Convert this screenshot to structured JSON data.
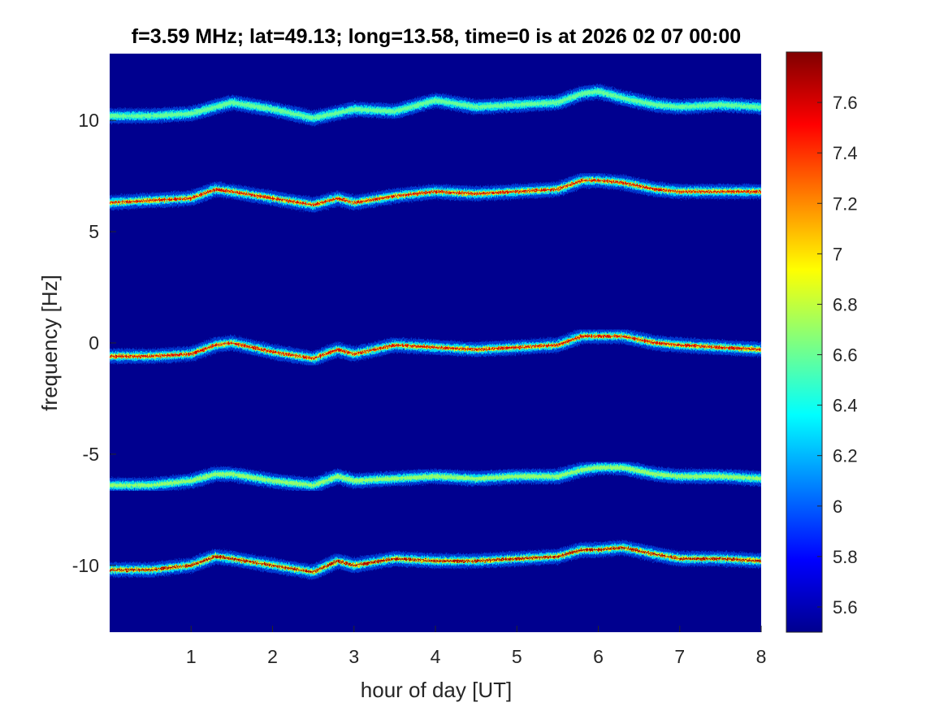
{
  "chart_data": {
    "type": "heatmap",
    "title": "f=3.59 MHz;  lat=49.13; long=13.58, time=0 is at 2026 02 07 00:00",
    "xlabel": "hour of day [UT]",
    "ylabel": "frequency [Hz]",
    "xlim": [
      0,
      8
    ],
    "ylim": [
      -13,
      13
    ],
    "x_ticks": [
      "1",
      "2",
      "3",
      "4",
      "5",
      "6",
      "7",
      "8"
    ],
    "y_ticks": [
      "10",
      "5",
      "0",
      "-5",
      "-10"
    ],
    "colormap": "jet",
    "background_color": "#00008f",
    "colorbar": {
      "range": [
        5.5,
        7.8
      ],
      "ticks": [
        "7.6",
        "7.4",
        "7.2",
        "7",
        "6.8",
        "6.6",
        "6.4",
        "6.2",
        "6",
        "5.8",
        "5.6"
      ]
    },
    "bands": [
      {
        "offset_hz": 10,
        "max_level": 6.6,
        "x": [
          0,
          0.5,
          1.0,
          1.5,
          2.0,
          2.5,
          3.0,
          3.5,
          4.0,
          4.5,
          5.0,
          5.5,
          5.8,
          6.0,
          6.3,
          6.7,
          7.0,
          7.5,
          8.0
        ],
        "y": [
          10.2,
          10.2,
          10.3,
          10.8,
          10.5,
          10.1,
          10.5,
          10.4,
          10.9,
          10.6,
          10.7,
          10.8,
          11.2,
          11.3,
          11.0,
          10.7,
          10.6,
          10.7,
          10.6
        ]
      },
      {
        "offset_hz": 6.5,
        "max_level": 7.6,
        "x": [
          0,
          0.5,
          1.0,
          1.3,
          1.5,
          2.0,
          2.5,
          2.8,
          3.0,
          3.5,
          4.0,
          4.5,
          5.0,
          5.5,
          5.8,
          6.0,
          6.3,
          6.7,
          7.0,
          7.5,
          8.0
        ],
        "y": [
          6.3,
          6.4,
          6.5,
          6.9,
          6.8,
          6.5,
          6.2,
          6.5,
          6.3,
          6.6,
          6.8,
          6.7,
          6.8,
          6.9,
          7.3,
          7.3,
          7.2,
          6.9,
          6.8,
          6.8,
          6.8
        ]
      },
      {
        "offset_hz": 0,
        "max_level": 7.6,
        "x": [
          0,
          0.5,
          1.0,
          1.3,
          1.5,
          2.0,
          2.5,
          2.8,
          3.0,
          3.5,
          4.0,
          4.5,
          5.0,
          5.5,
          5.8,
          6.0,
          6.3,
          6.7,
          7.0,
          7.5,
          8.0
        ],
        "y": [
          -0.6,
          -0.6,
          -0.5,
          -0.1,
          0.0,
          -0.4,
          -0.7,
          -0.3,
          -0.5,
          -0.1,
          -0.2,
          -0.3,
          -0.2,
          -0.1,
          0.3,
          0.3,
          0.3,
          0.0,
          -0.1,
          -0.2,
          -0.3
        ]
      },
      {
        "offset_hz": -6,
        "max_level": 6.7,
        "x": [
          0,
          0.5,
          1.0,
          1.3,
          1.5,
          2.0,
          2.5,
          2.8,
          3.0,
          3.5,
          4.0,
          4.5,
          5.0,
          5.5,
          5.8,
          6.0,
          6.3,
          6.7,
          7.0,
          7.5,
          8.0
        ],
        "y": [
          -6.4,
          -6.4,
          -6.2,
          -5.9,
          -5.9,
          -6.2,
          -6.4,
          -6.0,
          -6.2,
          -6.1,
          -6.0,
          -6.1,
          -6.0,
          -6.0,
          -5.7,
          -5.6,
          -5.6,
          -5.9,
          -6.0,
          -6.0,
          -6.1
        ]
      },
      {
        "offset_hz": -10,
        "max_level": 7.7,
        "x": [
          0,
          0.5,
          1.0,
          1.3,
          1.5,
          2.0,
          2.5,
          2.8,
          3.0,
          3.5,
          4.0,
          4.5,
          5.0,
          5.5,
          5.8,
          6.0,
          6.3,
          6.7,
          7.0,
          7.5,
          8.0
        ],
        "y": [
          -10.2,
          -10.2,
          -10.0,
          -9.6,
          -9.7,
          -10.0,
          -10.3,
          -9.8,
          -10.0,
          -9.7,
          -9.8,
          -9.8,
          -9.7,
          -9.6,
          -9.3,
          -9.3,
          -9.2,
          -9.5,
          -9.7,
          -9.7,
          -9.8
        ]
      }
    ]
  }
}
